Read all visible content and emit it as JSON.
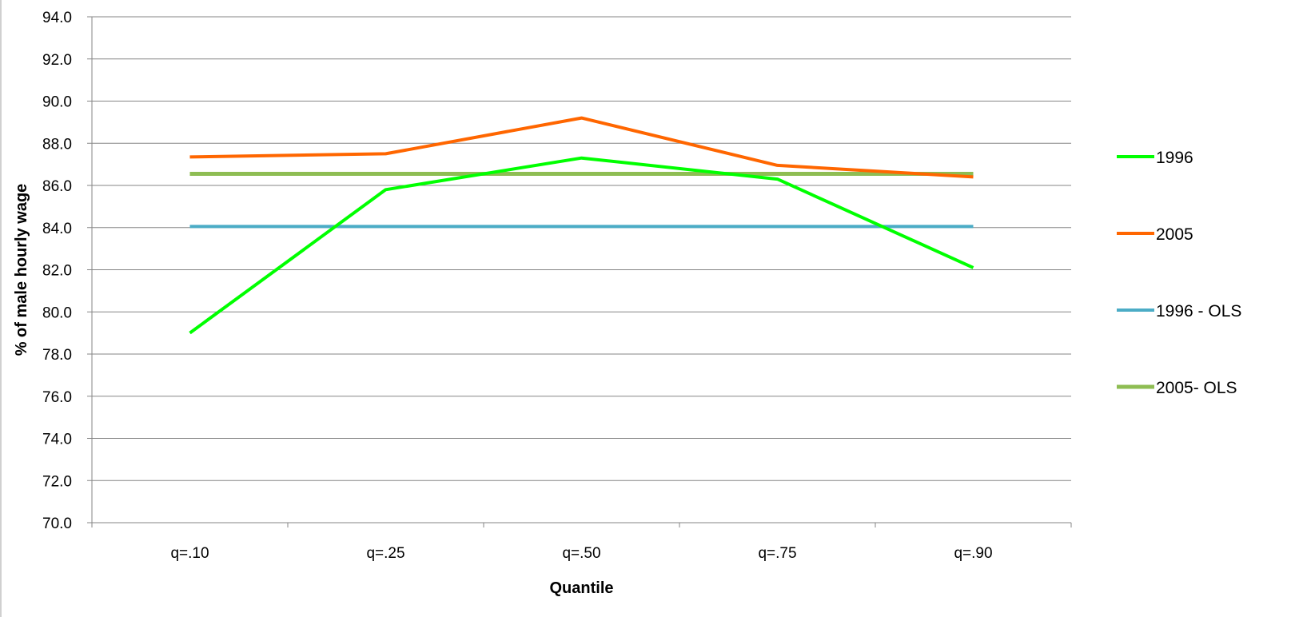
{
  "chart_data": {
    "type": "line",
    "title": "",
    "xlabel": "Quantile",
    "ylabel": "% of male hourly wage",
    "categories": [
      "q=.10",
      "q=.25",
      "q=.50",
      "q=.75",
      "q=.90"
    ],
    "ylim": [
      70,
      94
    ],
    "ytick_step": 2,
    "ytick_labels": [
      "70.0",
      "72.0",
      "74.0",
      "76.0",
      "78.0",
      "80.0",
      "82.0",
      "84.0",
      "86.0",
      "88.0",
      "90.0",
      "92.0",
      "94.0"
    ],
    "grid": true,
    "legend_position": "right",
    "series": [
      {
        "name": "1996",
        "color": "#00ff00",
        "values": [
          79.0,
          85.8,
          87.3,
          86.3,
          82.1
        ]
      },
      {
        "name": "2005",
        "color": "#ff6600",
        "values": [
          87.35,
          87.5,
          89.2,
          86.95,
          86.4
        ]
      },
      {
        "name": "1996 - OLS",
        "color": "#4bacc6",
        "values": [
          84.05,
          84.05,
          84.05,
          84.05,
          84.05
        ]
      },
      {
        "name": "2005- OLS",
        "color": "#8ebd53",
        "values": [
          86.55,
          86.55,
          86.55,
          86.55,
          86.55
        ]
      }
    ]
  }
}
